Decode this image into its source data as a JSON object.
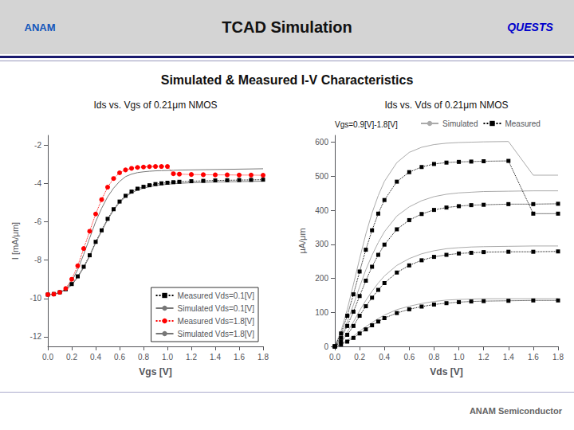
{
  "title": "TCAD Simulation",
  "subtitle": "Simulated & Measured I-V Characteristics",
  "annotations": [
    "ANAM",
    "QUESTS",
    "ANAM Semiconductor"
  ],
  "chart_data": [
    {
      "type": "line",
      "title": "Ids vs. Vgs of 0.21μm NMOS",
      "xlabel": "Vgs [V]",
      "ylabel": "I [mA/μm]",
      "x": [
        0.0,
        0.05,
        0.1,
        0.15,
        0.2,
        0.25,
        0.3,
        0.35,
        0.4,
        0.45,
        0.5,
        0.55,
        0.6,
        0.65,
        0.7,
        0.75,
        0.8,
        0.85,
        0.9,
        0.95,
        1.0,
        1.05,
        1.1,
        1.2,
        1.3,
        1.4,
        1.5,
        1.6,
        1.7,
        1.8
      ],
      "series": [
        {
          "name": "Measured Vds=0.1[V]",
          "color": "black",
          "marker": "square",
          "line_style": "dotted",
          "values": [
            -9.8,
            -9.77,
            -9.68,
            -9.52,
            -9.25,
            -8.85,
            -8.35,
            -7.75,
            -7.05,
            -6.45,
            -5.85,
            -5.35,
            -4.95,
            -4.65,
            -4.43,
            -4.28,
            -4.18,
            -4.1,
            -4.04,
            -4.0,
            -3.97,
            -3.94,
            -3.92,
            -3.89,
            -3.87,
            -3.85,
            -3.84,
            -3.83,
            -3.82,
            -3.81
          ]
        },
        {
          "name": "Simulated Vds=0.1[V]",
          "color": "#777777",
          "marker": "none",
          "line_style": "solid",
          "values": [
            -9.8,
            -9.78,
            -9.7,
            -9.55,
            -9.3,
            -8.9,
            -8.4,
            -7.8,
            -7.1,
            -6.5,
            -5.9,
            -5.4,
            -5.0,
            -4.7,
            -4.5,
            -4.35,
            -4.25,
            -4.18,
            -4.12,
            -4.08,
            -4.05,
            -4.02,
            -4.0,
            -3.97,
            -3.95,
            -3.93,
            -3.92,
            -3.91,
            -3.9,
            -3.89
          ]
        },
        {
          "name": "Measured Vds=1.8[V]",
          "color": "red",
          "marker": "circle",
          "line_style": "dotted",
          "values": [
            -9.8,
            -9.78,
            -9.68,
            -9.48,
            -9.0,
            -8.3,
            -7.4,
            -6.5,
            -5.6,
            -4.85,
            -4.2,
            -3.75,
            -3.45,
            -3.3,
            -3.22,
            -3.17,
            -3.15,
            -3.13,
            -3.12,
            -3.12,
            -3.12,
            -3.5,
            -3.52,
            -3.54,
            -3.55,
            -3.56,
            -3.56,
            -3.57,
            -3.57,
            -3.58
          ]
        },
        {
          "name": "Simulated Vds=1.8[V]",
          "color": "#777777",
          "marker": "none",
          "line_style": "solid",
          "values": [
            -9.8,
            -9.78,
            -9.7,
            -9.52,
            -9.1,
            -8.5,
            -7.7,
            -6.85,
            -6.0,
            -5.3,
            -4.7,
            -4.25,
            -3.9,
            -3.65,
            -3.52,
            -3.44,
            -3.4,
            -3.37,
            -3.35,
            -3.34,
            -3.33,
            -3.32,
            -3.31,
            -3.3,
            -3.29,
            -3.28,
            -3.27,
            -3.26,
            -3.25,
            -3.24
          ]
        }
      ],
      "xlim": [
        0.0,
        1.8
      ],
      "xticks": [
        {
          "value": 0,
          "label": "0.0"
        },
        0.2,
        0.4,
        0.6,
        0.8,
        {
          "value": 1,
          "label": "1.0"
        },
        1.2,
        1.4,
        1.6,
        1.8
      ],
      "ylim": [
        -12.5,
        -1.5
      ],
      "yticks": [
        -12,
        -10,
        -8,
        -6,
        -4,
        -2
      ],
      "grid": false,
      "legend": "lower right"
    },
    {
      "type": "line",
      "title": "Ids vs. Vds of 0.21μm NMOS",
      "xlabel": "Vds [V]",
      "ylabel": "μA/μm",
      "annotations": [
        "Vgs=0.9[V]-1.8[V]"
      ],
      "x": [
        0.0,
        0.05,
        0.1,
        0.15,
        0.2,
        0.25,
        0.3,
        0.35,
        0.4,
        0.5,
        0.6,
        0.7,
        0.8,
        0.9,
        1.0,
        1.1,
        1.2,
        1.4,
        1.6,
        1.8
      ],
      "series": [
        {
          "name": "Simulated",
          "color": "#aaaaaa",
          "marker": "none",
          "line_style": "solid",
          "values": [
            0,
            8,
            18,
            30,
            45,
            58,
            70,
            82,
            92,
            108,
            118,
            126,
            132,
            136,
            138,
            139,
            140,
            140,
            140,
            140
          ]
        },
        {
          "name": "Measured",
          "color": "black",
          "marker": "square",
          "line_style": "dotted",
          "values": [
            0,
            6,
            14,
            25,
            38,
            50,
            62,
            73,
            83,
            98,
            109,
            117,
            123,
            127,
            130,
            132,
            133,
            134,
            135,
            135
          ]
        },
        {
          "name": "Simulated",
          "color": "#aaaaaa",
          "marker": "none",
          "line_style": "solid",
          "values": [
            0,
            18,
            42,
            72,
            105,
            135,
            162,
            186,
            207,
            238,
            258,
            272,
            281,
            287,
            290,
            292,
            293,
            294,
            295,
            295
          ]
        },
        {
          "name": "Measured",
          "color": "black",
          "marker": "square",
          "line_style": "dotted",
          "values": [
            0,
            14,
            34,
            60,
            90,
            118,
            143,
            166,
            186,
            217,
            238,
            253,
            263,
            269,
            273,
            275,
            277,
            278,
            278,
            279
          ]
        },
        {
          "name": "Simulated",
          "color": "#aaaaaa",
          "marker": "none",
          "line_style": "solid",
          "values": [
            0,
            30,
            72,
            122,
            175,
            225,
            268,
            305,
            337,
            383,
            410,
            428,
            440,
            447,
            451,
            453,
            455,
            456,
            457,
            457
          ]
        },
        {
          "name": "Measured",
          "color": "black",
          "marker": "square",
          "line_style": "dotted",
          "values": [
            0,
            25,
            60,
            102,
            148,
            193,
            234,
            269,
            299,
            344,
            371,
            389,
            401,
            408,
            412,
            415,
            416,
            418,
            418,
            419
          ]
        },
        {
          "name": "Simulated",
          "color": "#aaaaaa",
          "marker": "none",
          "line_style": "solid",
          "values": [
            0,
            45,
            108,
            182,
            258,
            330,
            392,
            443,
            485,
            540,
            570,
            585,
            593,
            597,
            599,
            600,
            601,
            602,
            503,
            503
          ]
        },
        {
          "name": "Measured",
          "color": "black",
          "marker": "square",
          "line_style": "dotted",
          "values": [
            0,
            38,
            90,
            153,
            220,
            284,
            341,
            390,
            430,
            484,
            512,
            527,
            536,
            540,
            542,
            543,
            544,
            545,
            390,
            390
          ]
        }
      ],
      "xlim": [
        0.0,
        1.8
      ],
      "xticks": [
        {
          "value": 0,
          "label": "0.0"
        },
        0.2,
        0.4,
        0.6,
        0.8,
        {
          "value": 1,
          "label": "1.0"
        },
        1.2,
        1.4,
        1.6,
        1.8
      ],
      "ylim": [
        0,
        620
      ],
      "yticks": [
        0,
        100,
        200,
        300,
        400,
        500,
        600
      ],
      "grid": false,
      "legend": "upper left"
    }
  ]
}
